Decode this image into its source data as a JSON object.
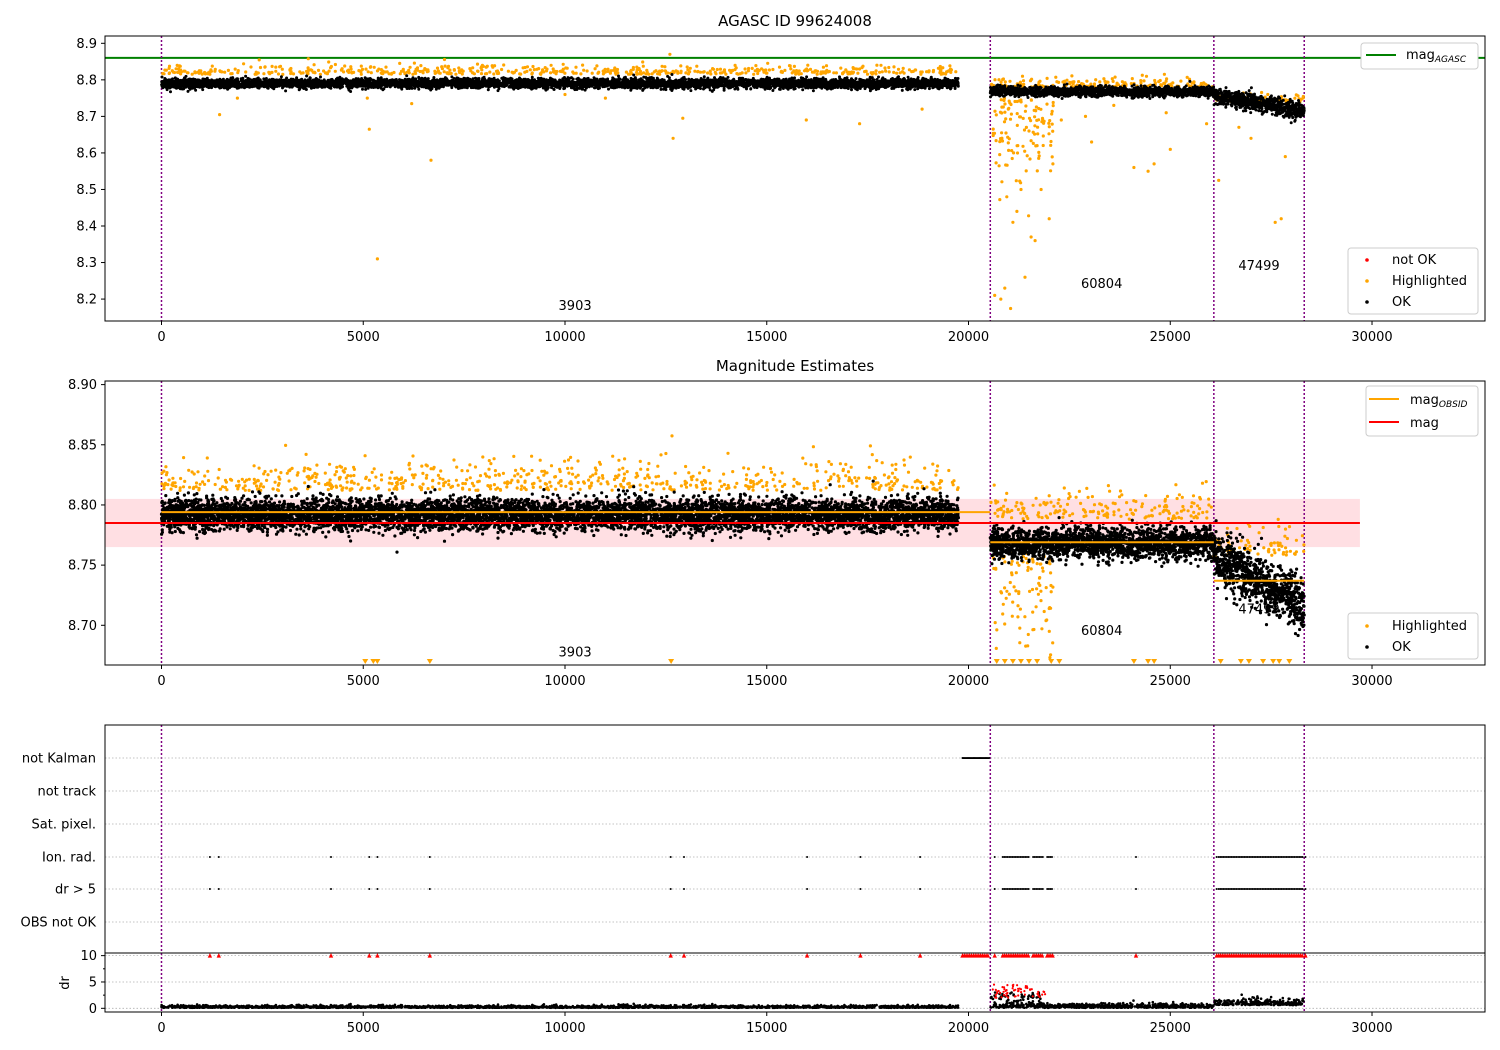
{
  "chart_data": [
    {
      "type": "scatter",
      "title": "AGASC ID 99624008",
      "ylim": [
        8.14,
        8.92
      ],
      "xlim": [
        -1400,
        32800
      ],
      "xticks": [
        0,
        5000,
        10000,
        15000,
        20000,
        25000,
        30000
      ],
      "yticks": [
        8.2,
        8.3,
        8.4,
        8.5,
        8.6,
        8.7,
        8.8,
        8.9
      ],
      "vlines": [
        0,
        20540,
        26080,
        28320
      ],
      "obsids": [
        {
          "label": "3903",
          "x": 10250,
          "y": 8.17
        },
        {
          "label": "60804",
          "x": 23300,
          "y": 8.23
        },
        {
          "label": "47499",
          "x": 27200,
          "y": 8.28
        }
      ],
      "mag_agasc": 8.86,
      "legend_lines": [
        "mag",
        "AGASC"
      ],
      "legend_points": [
        "not OK",
        "Highlighted",
        "OK"
      ],
      "segments": [
        {
          "x0": 0,
          "x1": 19750,
          "mean": 8.79,
          "std": 0.0065,
          "high_mean": 8.815,
          "outliers": [
            [
              1440,
              8.705
            ],
            [
              5150,
              8.665
            ],
            [
              6680,
              8.58
            ],
            [
              5350,
              8.31
            ],
            [
              12680,
              8.64
            ],
            [
              12920,
              8.695
            ],
            [
              15980,
              8.69
            ],
            [
              17300,
              8.68
            ],
            [
              18850,
              8.72
            ],
            [
              1880,
              8.75
            ],
            [
              5100,
              8.75
            ],
            [
              6200,
              8.735
            ],
            [
              10000,
              8.76
            ],
            [
              11000,
              8.75
            ],
            [
              12600,
              8.87
            ]
          ]
        },
        {
          "x0": 20540,
          "x1": 26080,
          "mean": 8.768,
          "std": 0.0065,
          "high_mean": 8.78,
          "outliers": [
            [
              20650,
              8.21
            ],
            [
              20800,
              8.2
            ],
            [
              20900,
              8.23
            ],
            [
              21400,
              8.26
            ],
            [
              21650,
              8.36
            ],
            [
              21550,
              8.37
            ],
            [
              21100,
              8.41
            ],
            [
              21200,
              8.44
            ],
            [
              20950,
              8.48
            ],
            [
              21300,
              8.5
            ],
            [
              21800,
              8.5
            ],
            [
              22000,
              8.42
            ],
            [
              23050,
              8.63
            ],
            [
              24100,
              8.56
            ],
            [
              24450,
              8.55
            ],
            [
              24600,
              8.57
            ],
            [
              25000,
              8.61
            ],
            [
              25900,
              8.68
            ],
            [
              21700,
              8.62
            ],
            [
              21500,
              8.66
            ],
            [
              22300,
              8.69
            ],
            [
              22900,
              8.7
            ],
            [
              23600,
              8.73
            ],
            [
              24900,
              8.71
            ]
          ]
        },
        {
          "x0": 26080,
          "x1": 28320,
          "mean": 8.728,
          "std": 0.011,
          "high_mean": 8.74,
          "outliers": [
            [
              26200,
              8.525
            ],
            [
              26700,
              8.67
            ],
            [
              27000,
              8.64
            ],
            [
              27600,
              8.41
            ],
            [
              27750,
              8.42
            ],
            [
              27850,
              8.59
            ]
          ]
        }
      ]
    },
    {
      "type": "scatter",
      "title": "Magnitude Estimates",
      "ylim": [
        8.667,
        8.903
      ],
      "xlim": [
        -1400,
        32800
      ],
      "xticks": [
        0,
        5000,
        10000,
        15000,
        20000,
        25000,
        30000
      ],
      "yticks": [
        8.7,
        8.75,
        8.8,
        8.85,
        8.9
      ],
      "ytick_labels": [
        "8.70",
        "8.75",
        "8.80",
        "8.85",
        "8.90"
      ],
      "vlines": [
        0,
        20540,
        26080,
        28320
      ],
      "obsids": [
        {
          "label": "3903",
          "x": 10250,
          "y": 8.674
        },
        {
          "label": "60804",
          "x": 23300,
          "y": 8.692
        },
        {
          "label": "47499",
          "x": 27200,
          "y": 8.71
        }
      ],
      "mag": 8.785,
      "mag_band": [
        8.765,
        8.805
      ],
      "mag_obsid": [
        {
          "x0": 0,
          "x1": 20540,
          "y": 8.794
        },
        {
          "x0": 20540,
          "x1": 26080,
          "y": 8.769
        },
        {
          "x0": 26080,
          "x1": 28320,
          "y": 8.737
        }
      ],
      "legend_lines": [
        "mag",
        "OBSID",
        "mag"
      ],
      "legend_points": [
        "Highlighted",
        "OK"
      ],
      "lower_limit_markers": [
        5050,
        5250,
        5350,
        6650,
        12630,
        20700,
        20900,
        21100,
        21300,
        21500,
        21700,
        22050,
        22250,
        24100,
        24450,
        24600,
        26250,
        26750,
        26950,
        27300,
        27550,
        27700,
        27950
      ]
    },
    {
      "type": "scatter",
      "title": "",
      "xlim": [
        -1400,
        32800
      ],
      "xticks": [
        0,
        5000,
        10000,
        15000,
        20000,
        25000,
        30000
      ],
      "vlines": [
        0,
        20540,
        26080,
        28320
      ],
      "flag_rows": [
        "not Kalman",
        "not track",
        "Sat. pixel.",
        "Ion. rad.",
        "dr > 5",
        "OBS not OK"
      ],
      "flag_points": {
        "not Kalman": [
          [
            19850,
            20520
          ]
        ],
        "Ion. rad.": [
          1200,
          1420,
          4200,
          5150,
          5350,
          6650,
          12620,
          12950,
          16000,
          17320,
          18800,
          20650,
          24150,
          26150,
          28350
        ],
        "dr > 5": [
          1200,
          1420,
          4200,
          5150,
          5350,
          6650,
          12620,
          12950,
          16000,
          17320,
          18800,
          20650,
          24150,
          26150,
          28350
        ]
      },
      "flag_ranges": {
        "Ion. rad.": [
          [
            20850,
            21500
          ],
          [
            21600,
            21850
          ],
          [
            21950,
            22100
          ],
          [
            26200,
            28300
          ]
        ],
        "dr > 5": [
          [
            20850,
            21500
          ],
          [
            21600,
            21850
          ],
          [
            21950,
            22100
          ],
          [
            26200,
            28300
          ]
        ]
      },
      "dr": {
        "ylabel": "dr",
        "ylim": [
          -0.7,
          10.5
        ],
        "yticks": [
          0,
          5,
          10
        ],
        "cap": 10,
        "capped_points": [
          1200,
          1420,
          4200,
          5150,
          5350,
          6650,
          12620,
          12950,
          16000,
          17320,
          18800,
          20650,
          24150,
          26150,
          28350
        ],
        "capped_ranges": [
          [
            19850,
            20520
          ],
          [
            20850,
            21500
          ],
          [
            21600,
            21850
          ],
          [
            21950,
            22100
          ],
          [
            26200,
            28300
          ]
        ]
      }
    }
  ],
  "colors": {
    "ok": "#000000",
    "highlighted": "#ffa500",
    "not_ok": "#ff0000",
    "agasc_line": "#008000",
    "mag_line": "#ff0000",
    "obsid_line": "#ffa500",
    "vline": "#800080",
    "mag_band": "#ffc0c8"
  }
}
